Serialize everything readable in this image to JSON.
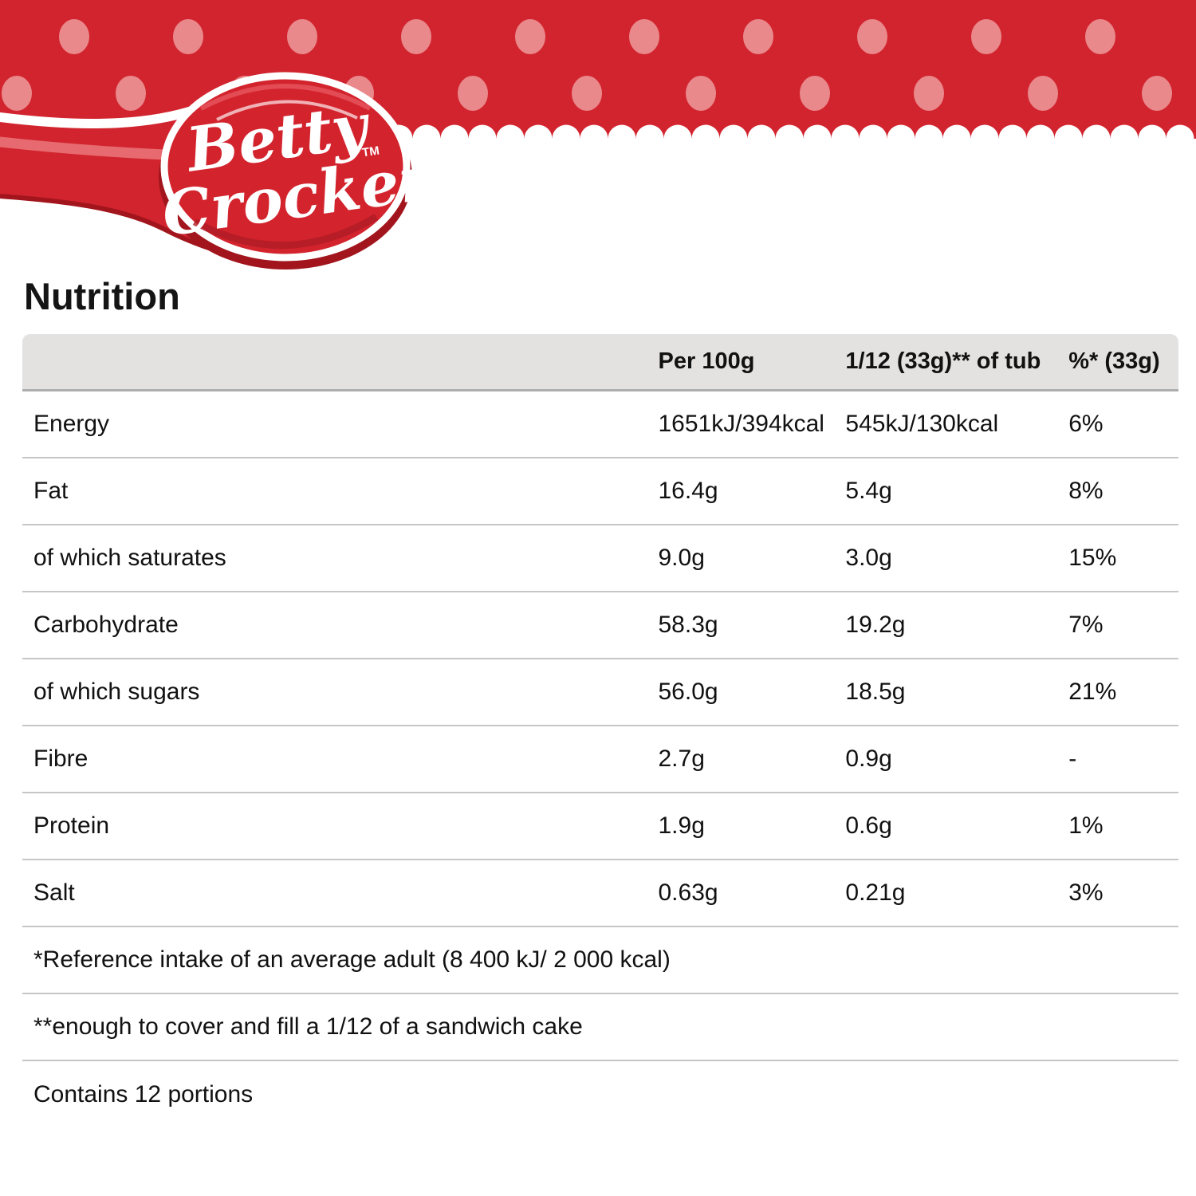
{
  "brand": {
    "name_line1": "Betty",
    "name_line2": "Crocker",
    "trademark": "TM"
  },
  "page": {
    "title": "Nutrition"
  },
  "colors": {
    "banner_red": "#d2242e",
    "dot_pink": "#e9898c",
    "spoon_dark_red": "#a2151d",
    "swoosh_pink": "#e66a6f",
    "header_grey": "#e3e2e1"
  },
  "table": {
    "columns": {
      "per_100g": "Per 100g",
      "per_portion": "1/12 (33g)** of tub",
      "percent": "%* (33g)"
    },
    "rows": [
      {
        "label": "Energy",
        "per100": "1651kJ/394kcal",
        "portion": "545kJ/130kcal",
        "pct": "6%"
      },
      {
        "label": "Fat",
        "per100": "16.4g",
        "portion": "5.4g",
        "pct": "8%"
      },
      {
        "label": "of which saturates",
        "per100": "9.0g",
        "portion": "3.0g",
        "pct": "15%"
      },
      {
        "label": "Carbohydrate",
        "per100": "58.3g",
        "portion": "19.2g",
        "pct": "7%"
      },
      {
        "label": "of which sugars",
        "per100": "56.0g",
        "portion": "18.5g",
        "pct": "21%"
      },
      {
        "label": "Fibre",
        "per100": "2.7g",
        "portion": "0.9g",
        "pct": "-"
      },
      {
        "label": "Protein",
        "per100": "1.9g",
        "portion": "0.6g",
        "pct": "1%"
      },
      {
        "label": "Salt",
        "per100": "0.63g",
        "portion": "0.21g",
        "pct": "3%"
      }
    ],
    "footnotes": [
      "*Reference intake of an average adult (8 400 kJ/ 2 000 kcal)",
      "**enough to cover and fill a 1/12 of a sandwich cake",
      "Contains 12 portions"
    ]
  }
}
